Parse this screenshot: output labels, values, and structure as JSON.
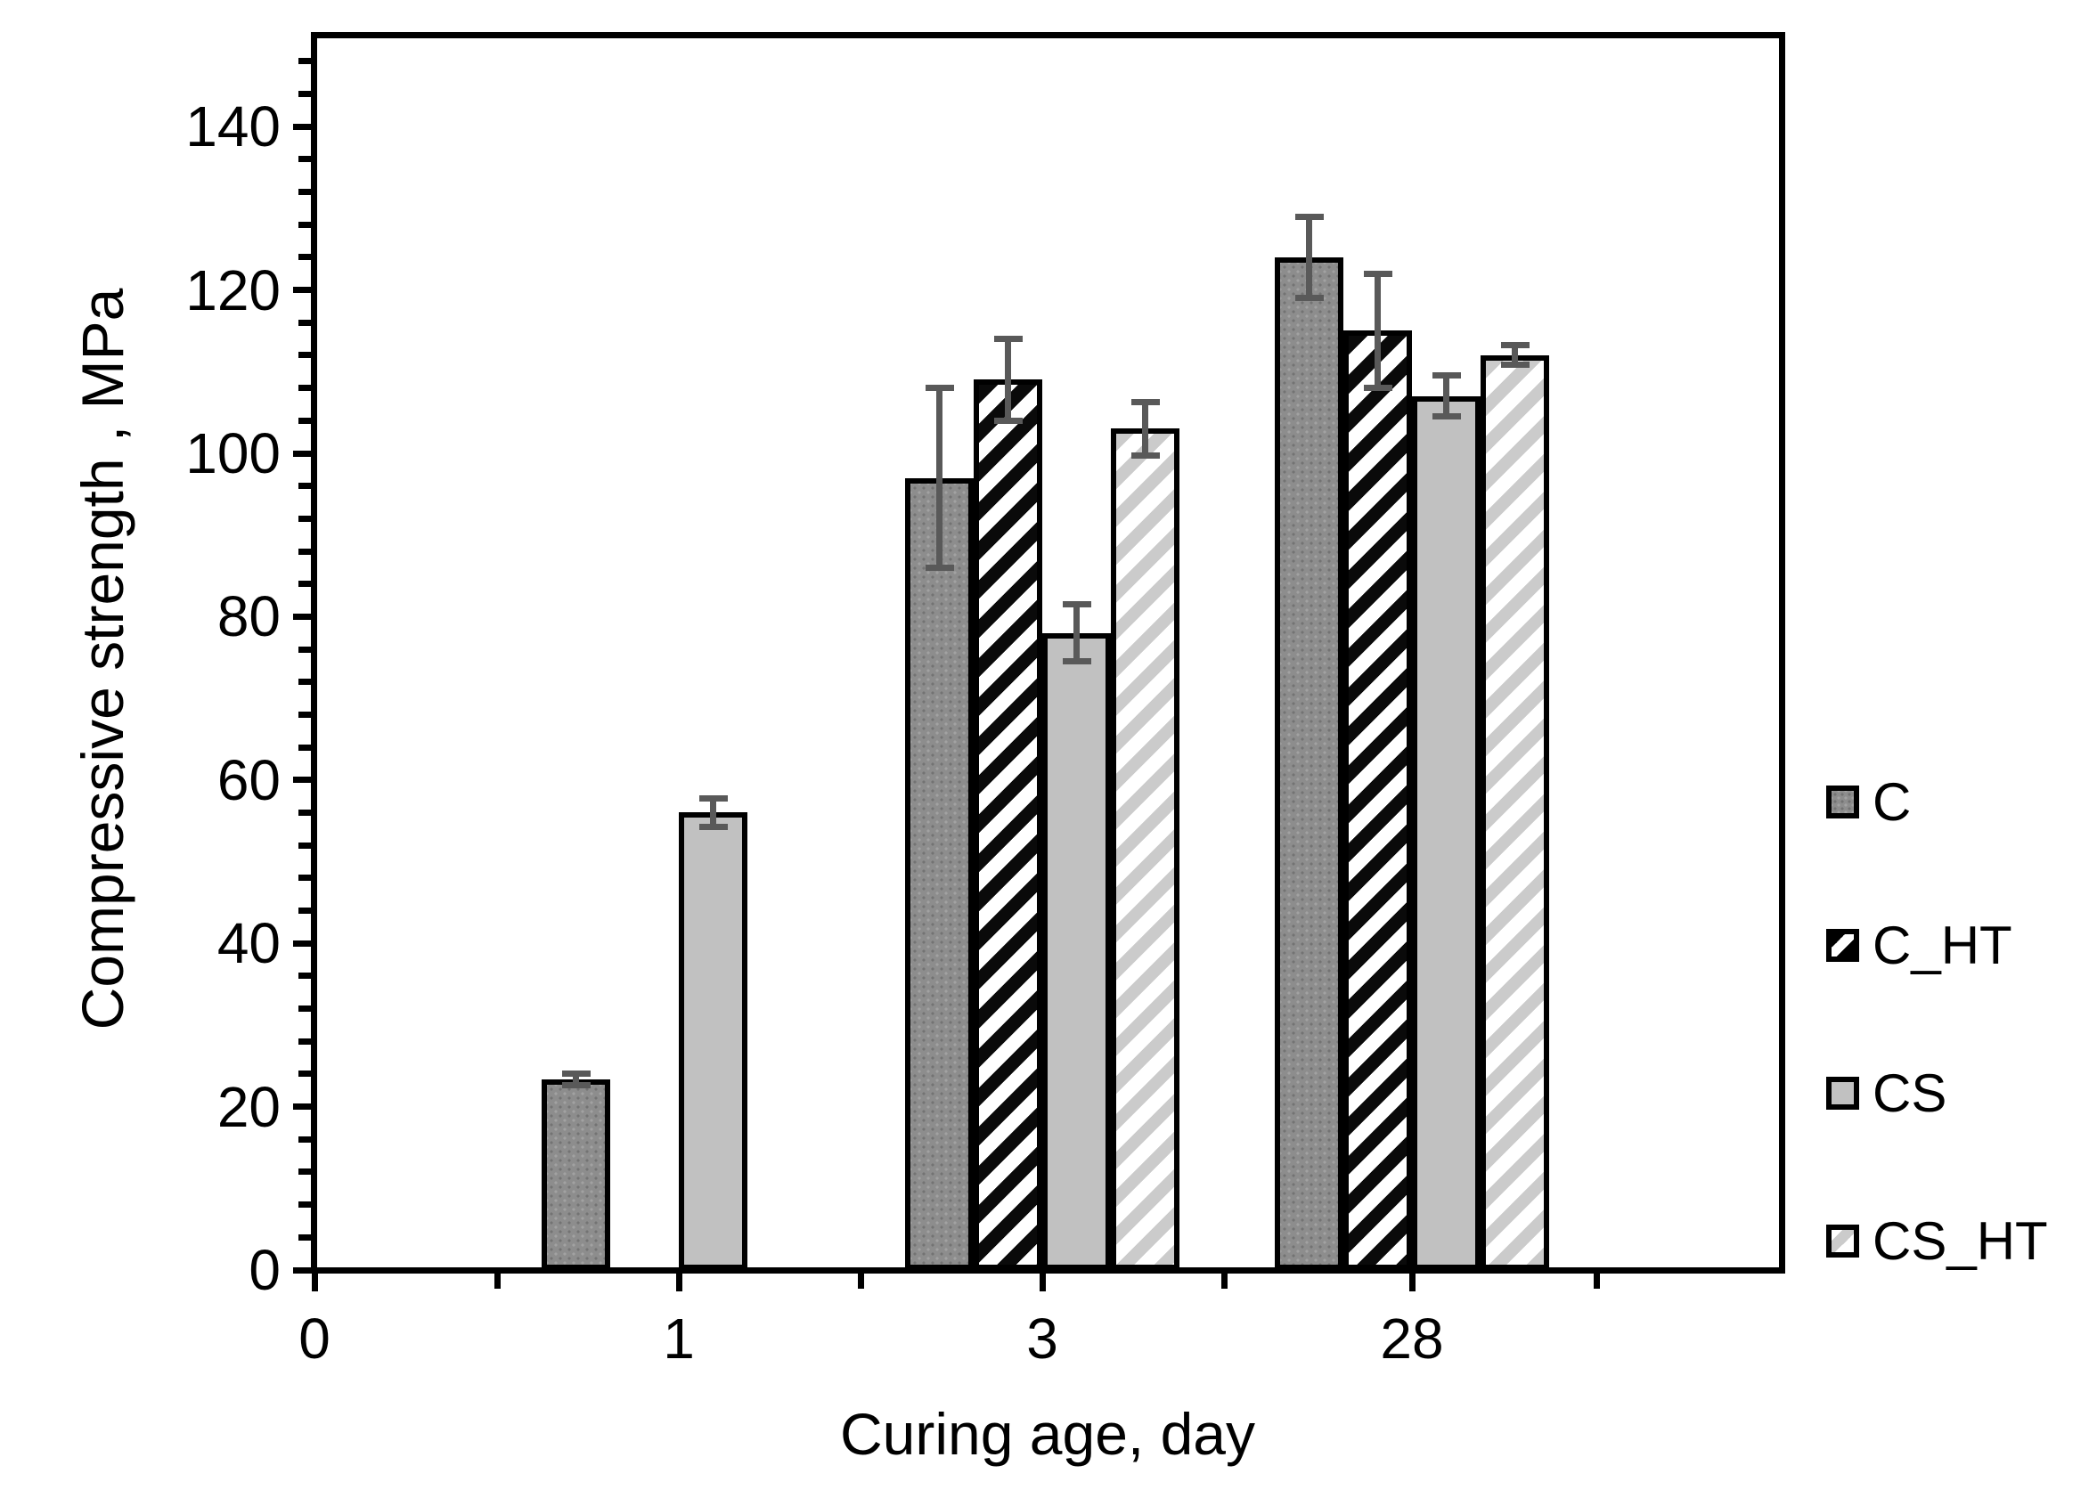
{
  "chart_data": {
    "type": "bar",
    "title": "",
    "xlabel": "Curing age, day",
    "ylabel": "Compressive strength , MPa",
    "x_tick_labels": [
      "0",
      "1",
      "3",
      "28"
    ],
    "categories": [
      "1",
      "3",
      "28"
    ],
    "ylim": [
      0,
      150
    ],
    "y_major_unit": 20,
    "y_major_tick_labels": [
      "0",
      "20",
      "40",
      "60",
      "80",
      "100",
      "120",
      "140"
    ],
    "y_minor_unit": 4,
    "grid": "off",
    "legend_position": "right",
    "bar_outline_color": "#000000",
    "error_bar_color": "#595959",
    "series": [
      {
        "name": "C",
        "pattern": "dark-gray-dotted",
        "fill_class": "fill-c",
        "swatch_class": "swatch-c",
        "values": [
          23.3,
          97,
          124
        ],
        "errors": [
          0.7,
          11,
          5
        ]
      },
      {
        "name": "C_HT",
        "pattern": "black-diagonal-hatch",
        "fill_class": "fill-cht",
        "swatch_class": "swatch-cht",
        "values": [
          null,
          109,
          115
        ],
        "errors": [
          null,
          5,
          7
        ]
      },
      {
        "name": "CS",
        "pattern": "light-gray-solid",
        "fill_class": "fill-cs",
        "swatch_class": "swatch-cs",
        "values": [
          56,
          78,
          107
        ],
        "errors": [
          1.7,
          3.5,
          2.5
        ]
      },
      {
        "name": "CS_HT",
        "pattern": "light-gray-diagonal-hatch",
        "fill_class": "fill-csht",
        "swatch_class": "swatch-csht",
        "values": [
          null,
          103,
          112
        ],
        "errors": [
          null,
          3.3,
          1.2
        ]
      }
    ],
    "colors": {
      "dark_gray": "#8d8d8d",
      "light_gray": "#c1c1c1",
      "hatch_black": "#0a0a0a",
      "hatch_light_gray": "#cbcbcb",
      "axis": "#000000",
      "error_bar": "#595959",
      "text": "#000000",
      "background": "#ffffff"
    }
  }
}
